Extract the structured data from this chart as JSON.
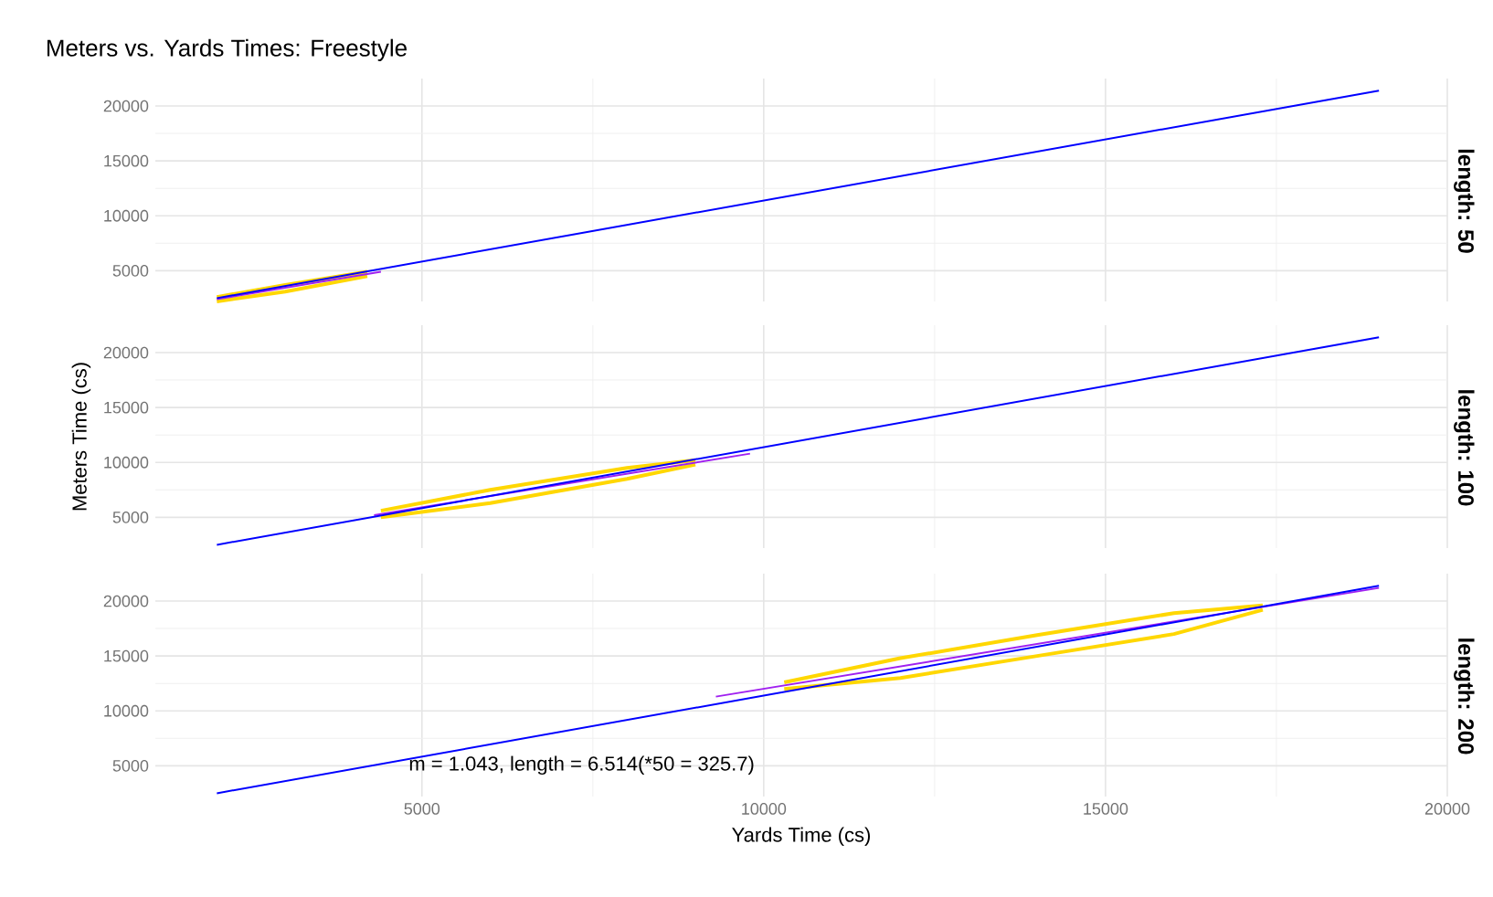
{
  "chart_data": [
    {
      "type": "line",
      "title": "Meters vs. Yards Times: Freestyle",
      "annotations": [
        "length: 50"
      ],
      "xlim": [
        1100,
        20000
      ],
      "ylim": [
        2200,
        22500
      ],
      "xticks": [
        5000,
        10000,
        15000,
        20000
      ],
      "yticks": [
        5000,
        10000,
        15000,
        20000
      ],
      "grid": true,
      "tick_labels": "y",
      "series": [
        {
          "color": "#ffd700",
          "x": [
            2000,
            3000,
            4200
          ],
          "values": [
            2600,
            3700,
            4900
          ]
        },
        {
          "color": "#ffd700",
          "x": [
            2000,
            3000,
            4200
          ],
          "values": [
            2200,
            3100,
            4500
          ]
        },
        {
          "color": "#a020f0",
          "x": [
            2000,
            4400
          ],
          "values": [
            2400,
            4900
          ]
        },
        {
          "color": "#0000ff",
          "x": [
            2000,
            19000
          ],
          "values": [
            2500,
            21400
          ]
        }
      ]
    },
    {
      "type": "line",
      "ylabel": "Meters Time (cs)",
      "annotations": [
        "length: 100"
      ],
      "xlim": [
        1100,
        20000
      ],
      "ylim": [
        2200,
        22500
      ],
      "xticks": [
        5000,
        10000,
        15000,
        20000
      ],
      "yticks": [
        5000,
        10000,
        15000,
        20000
      ],
      "grid": true,
      "tick_labels": "y",
      "series": [
        {
          "color": "#ffd700",
          "x": [
            4400,
            6000,
            8000,
            9000
          ],
          "values": [
            5600,
            7500,
            9500,
            10200
          ]
        },
        {
          "color": "#ffd700",
          "x": [
            4400,
            6000,
            8000,
            9000
          ],
          "values": [
            5000,
            6300,
            8500,
            9800
          ]
        },
        {
          "color": "#a020f0",
          "x": [
            4300,
            9800
          ],
          "values": [
            5200,
            10800
          ]
        },
        {
          "color": "#0000ff",
          "x": [
            2000,
            19000
          ],
          "values": [
            2500,
            21400
          ]
        }
      ]
    },
    {
      "type": "line",
      "xlabel": "Yards Time (cs)",
      "annotations": [
        "length: 200",
        "m = 1.043, length = 6.514(*50 = 325.7)"
      ],
      "xlim": [
        1100,
        20000
      ],
      "ylim": [
        2200,
        22500
      ],
      "xticks": [
        5000,
        10000,
        15000,
        20000
      ],
      "yticks": [
        5000,
        10000,
        15000,
        20000
      ],
      "grid": true,
      "series": [
        {
          "color": "#ffd700",
          "x": [
            10300,
            12000,
            14000,
            16000,
            17300
          ],
          "values": [
            12600,
            14800,
            16900,
            18900,
            19600
          ]
        },
        {
          "color": "#ffd700",
          "x": [
            10300,
            12000,
            14000,
            16000,
            17300
          ],
          "values": [
            12000,
            13000,
            15000,
            17000,
            19200
          ]
        },
        {
          "color": "#a020f0",
          "x": [
            9300,
            19000
          ],
          "values": [
            11300,
            21200
          ]
        },
        {
          "color": "#0000ff",
          "x": [
            2000,
            19000
          ],
          "values": [
            2500,
            21400
          ]
        }
      ]
    }
  ]
}
